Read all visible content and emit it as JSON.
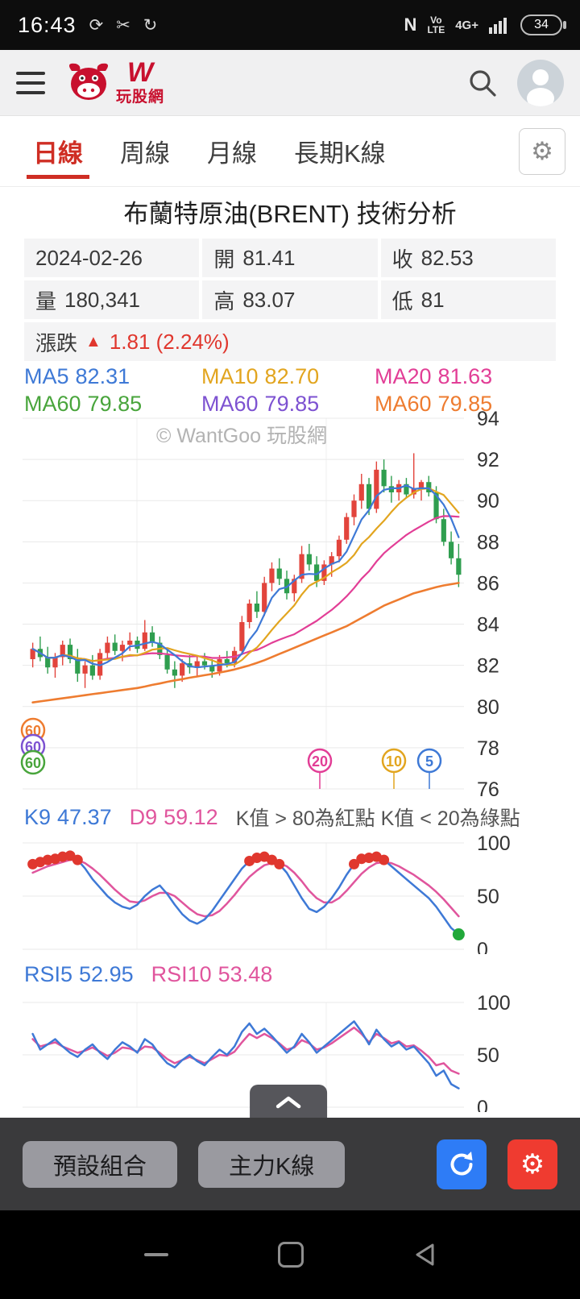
{
  "status_bar": {
    "time": "16:43",
    "nfc": "N",
    "volte_top": "Vo",
    "volte_bottom": "LTE",
    "network": "4G+",
    "battery": "34"
  },
  "header": {
    "brand": "玩股網",
    "logo_letter": "W"
  },
  "tab_bar": {
    "tabs": [
      {
        "label": "日線"
      },
      {
        "label": "周線"
      },
      {
        "label": "月線"
      },
      {
        "label": "長期K線"
      }
    ]
  },
  "page": {
    "title": "布蘭特原油(BRENT) 技術分析",
    "watermark": "© WantGoo 玩股網"
  },
  "quote": {
    "date": "2024-02-26",
    "open_label": "開",
    "open": "81.41",
    "close_label": "收",
    "close": "82.53",
    "vol_label": "量",
    "volume": "180,341",
    "high_label": "高",
    "high": "83.07",
    "low_label": "低",
    "low": "81",
    "change_label": "漲跌",
    "change_arrow": "▲",
    "change": "1.81 (2.24%)"
  },
  "ma_legend": {
    "items": [
      {
        "label": "MA5",
        "value": "82.31",
        "color": "#3e79d6"
      },
      {
        "label": "MA10",
        "value": "82.70",
        "color": "#e2a51f"
      },
      {
        "label": "MA20",
        "value": "81.63",
        "color": "#e23e96"
      },
      {
        "label": "MA60",
        "value": "79.85",
        "color": "#49a53c"
      },
      {
        "label": "MA60",
        "value": "79.85",
        "color": "#7d52d1"
      },
      {
        "label": "MA60",
        "value": "79.85",
        "color": "#ee7c30"
      }
    ]
  },
  "kd": {
    "k_label": "K9",
    "k_value": "47.37",
    "d_label": "D9",
    "d_value": "59.12",
    "note": "K值 > 80為紅點 K值 < 20為綠點"
  },
  "rsi": {
    "r5_label": "RSI5",
    "r5_value": "52.95",
    "r10_label": "RSI10",
    "r10_value": "53.48"
  },
  "toolbar": {
    "preset_label": "預設組合",
    "maink_label": "主力K線"
  },
  "chart_data": {
    "type": "candlestick",
    "title": "布蘭特原油(BRENT) 技術分析",
    "price": {
      "ylim": [
        76,
        94
      ],
      "y_ticks": [
        94,
        92,
        90,
        88,
        86,
        84,
        82,
        80,
        78,
        76
      ],
      "colors": {
        "up": "#e2443c",
        "down": "#2f9e4f",
        "ma5": "#3e79d6",
        "ma10": "#e2a51f",
        "ma20": "#e23e96",
        "ma60": "#ee7c30"
      },
      "candles": [
        [
          82.3,
          83.1,
          81.9,
          82.8
        ],
        [
          82.8,
          83.4,
          82.2,
          82.4
        ],
        [
          82.4,
          82.9,
          81.6,
          81.9
        ],
        [
          81.9,
          82.6,
          81.4,
          82.4
        ],
        [
          82.4,
          83.2,
          82.0,
          83.0
        ],
        [
          83.0,
          83.3,
          82.1,
          82.3
        ],
        [
          82.3,
          82.8,
          81.2,
          81.6
        ],
        [
          81.6,
          82.2,
          80.9,
          82.0
        ],
        [
          82.0,
          82.5,
          81.3,
          81.5
        ],
        [
          81.5,
          82.8,
          81.3,
          82.6
        ],
        [
          82.6,
          83.4,
          82.3,
          83.1
        ],
        [
          83.1,
          83.5,
          82.5,
          82.7
        ],
        [
          82.7,
          83.2,
          82.2,
          83.0
        ],
        [
          83.0,
          83.6,
          82.7,
          83.2
        ],
        [
          83.2,
          83.4,
          82.6,
          82.8
        ],
        [
          82.8,
          84.2,
          82.7,
          83.6
        ],
        [
          83.6,
          83.9,
          82.9,
          83.1
        ],
        [
          83.1,
          83.4,
          82.3,
          82.5
        ],
        [
          82.5,
          82.8,
          81.6,
          81.8
        ],
        [
          81.8,
          82.2,
          80.9,
          81.5
        ],
        [
          81.5,
          82.3,
          81.2,
          82.1
        ],
        [
          82.1,
          82.5,
          81.6,
          81.9
        ],
        [
          81.9,
          82.4,
          81.5,
          82.2
        ],
        [
          82.2,
          82.6,
          81.8,
          82.0
        ],
        [
          82.0,
          82.3,
          81.4,
          81.7
        ],
        [
          81.7,
          82.5,
          81.5,
          82.3
        ],
        [
          82.3,
          82.7,
          81.9,
          82.1
        ],
        [
          82.1,
          82.9,
          81.9,
          82.7
        ],
        [
          82.7,
          84.4,
          82.5,
          84.1
        ],
        [
          84.1,
          85.2,
          83.8,
          85.0
        ],
        [
          85.0,
          85.6,
          84.3,
          84.6
        ],
        [
          84.6,
          86.3,
          84.4,
          86.0
        ],
        [
          86.0,
          87.0,
          85.6,
          86.7
        ],
        [
          86.7,
          87.2,
          85.9,
          86.2
        ],
        [
          86.2,
          86.6,
          85.2,
          85.5
        ],
        [
          85.5,
          86.4,
          85.1,
          86.2
        ],
        [
          86.2,
          87.8,
          86.0,
          87.4
        ],
        [
          87.4,
          87.9,
          86.6,
          86.9
        ],
        [
          86.9,
          87.3,
          85.8,
          86.1
        ],
        [
          86.1,
          87.1,
          85.9,
          86.9
        ],
        [
          86.9,
          87.5,
          86.3,
          87.3
        ],
        [
          87.3,
          88.3,
          87.0,
          88.1
        ],
        [
          88.1,
          89.4,
          87.9,
          89.2
        ],
        [
          89.2,
          90.3,
          88.8,
          90.0
        ],
        [
          90.0,
          91.3,
          89.6,
          90.8
        ],
        [
          90.8,
          91.1,
          89.3,
          89.6
        ],
        [
          89.6,
          91.9,
          89.4,
          91.5
        ],
        [
          91.5,
          92.0,
          90.4,
          90.7
        ],
        [
          90.7,
          91.2,
          89.9,
          90.4
        ],
        [
          90.4,
          91.0,
          90.0,
          90.8
        ],
        [
          90.8,
          91.1,
          90.1,
          90.3
        ],
        [
          90.3,
          92.3,
          90.1,
          90.6
        ],
        [
          90.6,
          91.0,
          90.0,
          90.9
        ],
        [
          90.9,
          91.2,
          90.2,
          90.4
        ],
        [
          90.4,
          90.7,
          88.9,
          89.1
        ],
        [
          89.1,
          89.6,
          87.8,
          88.0
        ],
        [
          88.0,
          88.5,
          86.9,
          87.2
        ],
        [
          87.2,
          87.9,
          85.8,
          86.4
        ]
      ],
      "ma60": [
        80.2,
        80.25,
        80.3,
        80.35,
        80.4,
        80.45,
        80.5,
        80.55,
        80.6,
        80.65,
        80.7,
        80.75,
        80.8,
        80.85,
        80.9,
        80.97,
        81.05,
        81.12,
        81.2,
        81.27,
        81.33,
        81.4,
        81.46,
        81.52,
        81.58,
        81.65,
        81.72,
        81.8,
        81.9,
        82.0,
        82.12,
        82.25,
        82.4,
        82.55,
        82.7,
        82.85,
        83.0,
        83.15,
        83.3,
        83.45,
        83.6,
        83.75,
        83.9,
        84.1,
        84.3,
        84.5,
        84.7,
        84.9,
        85.05,
        85.2,
        85.35,
        85.5,
        85.6,
        85.7,
        85.8,
        85.88,
        85.94,
        86.0
      ],
      "pins_left": [
        {
          "label": "60",
          "color": "#ee7c30"
        },
        {
          "label": "60",
          "color": "#7d52d1"
        },
        {
          "label": "60",
          "color": "#49a53c"
        }
      ],
      "pins_right": [
        {
          "label": "20",
          "color": "#e23e96",
          "x": 397
        },
        {
          "label": "10",
          "color": "#e2a51f",
          "x": 489
        },
        {
          "label": "5",
          "color": "#3e79d6",
          "x": 533
        }
      ]
    },
    "kd": {
      "y_ticks": [
        100,
        50,
        0
      ],
      "colors": {
        "k": "#3e79d6",
        "d": "#e0559d",
        "red_dot": "#e0372e",
        "green_dot": "#21a83a"
      },
      "red_dot_threshold": 80,
      "green_dot_threshold": 20,
      "k": [
        80,
        82,
        84,
        85,
        87,
        88,
        84,
        76,
        66,
        58,
        50,
        44,
        40,
        38,
        42,
        50,
        56,
        60,
        52,
        42,
        33,
        27,
        24,
        28,
        36,
        46,
        56,
        66,
        76,
        83,
        86,
        87,
        84,
        80,
        72,
        60,
        48,
        38,
        35,
        40,
        48,
        58,
        70,
        80,
        85,
        86,
        87,
        84,
        78,
        72,
        66,
        60,
        54,
        48,
        40,
        30,
        20,
        14
      ],
      "d": [
        72,
        75,
        78,
        80,
        82,
        84,
        84,
        81,
        76,
        70,
        63,
        56,
        50,
        45,
        44,
        46,
        50,
        53,
        53,
        50,
        44,
        38,
        33,
        31,
        32,
        36,
        43,
        51,
        60,
        68,
        74,
        79,
        81,
        81,
        78,
        72,
        64,
        55,
        48,
        44,
        44,
        48,
        55,
        63,
        71,
        77,
        81,
        82,
        81,
        78,
        74,
        70,
        65,
        60,
        54,
        47,
        39,
        31
      ]
    },
    "rsi": {
      "y_ticks": [
        100,
        50,
        0
      ],
      "colors": {
        "rsi5": "#3e79d6",
        "rsi10": "#e0559d"
      },
      "rsi5": [
        70,
        55,
        60,
        65,
        58,
        52,
        48,
        55,
        60,
        52,
        46,
        55,
        62,
        58,
        52,
        65,
        60,
        50,
        42,
        38,
        45,
        50,
        44,
        40,
        48,
        55,
        50,
        58,
        72,
        80,
        70,
        75,
        68,
        60,
        52,
        58,
        70,
        62,
        52,
        58,
        64,
        70,
        76,
        82,
        72,
        60,
        74,
        65,
        58,
        62,
        55,
        58,
        50,
        42,
        30,
        35,
        22,
        18
      ],
      "rsi10": [
        65,
        58,
        60,
        62,
        58,
        55,
        52,
        54,
        57,
        53,
        49,
        52,
        57,
        56,
        53,
        58,
        57,
        52,
        46,
        42,
        45,
        48,
        45,
        42,
        46,
        50,
        49,
        53,
        62,
        70,
        66,
        70,
        66,
        61,
        55,
        57,
        64,
        61,
        55,
        57,
        61,
        66,
        71,
        76,
        70,
        62,
        70,
        66,
        61,
        63,
        58,
        59,
        54,
        48,
        40,
        42,
        35,
        32
      ]
    }
  }
}
